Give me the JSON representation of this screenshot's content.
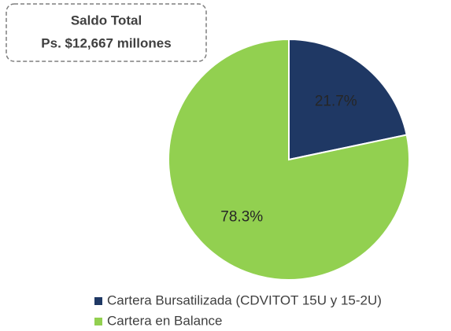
{
  "chart_data": {
    "type": "pie",
    "annotation": [
      "Saldo Total",
      "Ps. $12,667 millones"
    ],
    "categories": [
      "Cartera Bursatilizada (CDVITOT 15U y 15-2U)",
      "Cartera en Balance"
    ],
    "values": [
      21.7,
      78.3
    ],
    "value_labels": [
      "21.7%",
      "78.3%"
    ],
    "colors": [
      "#1f3864",
      "#92d050"
    ],
    "legend": "bottom"
  }
}
